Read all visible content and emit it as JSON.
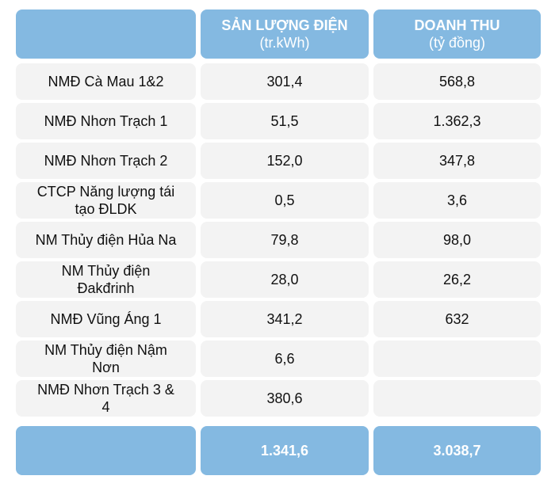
{
  "colors": {
    "header": "#84b9e1",
    "row": "#f3f3f3",
    "text": "#111111",
    "header_text": "#ffffff"
  },
  "chart_data": {
    "type": "table",
    "columns": [
      {
        "title": "",
        "unit": ""
      },
      {
        "title": "SẢN LƯỢNG ĐIỆN",
        "unit": "(tr.kWh)"
      },
      {
        "title": "DOANH THU",
        "unit": "(tỷ đồng)"
      }
    ],
    "rows": [
      {
        "name": "NMĐ Cà Mau 1&2",
        "output": "301,4",
        "revenue": "568,8"
      },
      {
        "name": "NMĐ Nhơn Trạch 1",
        "output": "51,5",
        "revenue": "1.362,3"
      },
      {
        "name": "NMĐ Nhơn Trạch 2",
        "output": "152,0",
        "revenue": "347,8"
      },
      {
        "name": "CTCP Năng lượng tái tạo ĐLDK",
        "output": "0,5",
        "revenue": "3,6"
      },
      {
        "name": "NM Thủy điện Hủa Na",
        "output": "79,8",
        "revenue": "98,0"
      },
      {
        "name": "NM Thủy điện Đakđrinh",
        "output": "28,0",
        "revenue": "26,2"
      },
      {
        "name": "NMĐ Vũng Áng 1",
        "output": "341,2",
        "revenue": "632"
      },
      {
        "name": "NM Thủy điện Nậm Nơn",
        "output": "6,6",
        "revenue": ""
      },
      {
        "name": "NMĐ Nhơn Trạch 3 & 4",
        "output": "380,6",
        "revenue": ""
      }
    ],
    "total": {
      "name": "",
      "output": "1.341,6",
      "revenue": "3.038,7"
    }
  }
}
